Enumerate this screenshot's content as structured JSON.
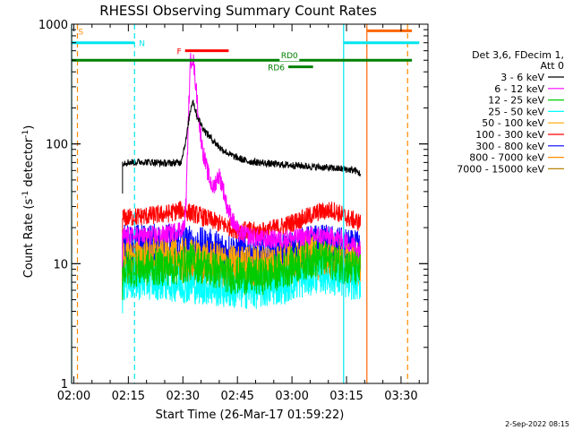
{
  "chart_data": {
    "type": "line",
    "title": "RHESSI Observing Summary Count Rates",
    "xlabel": "Start Time (26-Mar-17 01:59:22)",
    "ylabel": "Count Rate (s⁻¹ detector⁻¹)",
    "ylabel_parts": [
      "Count Rate (s",
      "-1",
      " detector",
      "-1",
      ")"
    ],
    "yscale": "log",
    "ylim": [
      1,
      1000
    ],
    "xlim_minutes": [
      0,
      98
    ],
    "x_ticks": [
      {
        "label": "02:00",
        "t": 0.6
      },
      {
        "label": "02:15",
        "t": 15.6
      },
      {
        "label": "02:30",
        "t": 30.6
      },
      {
        "label": "02:45",
        "t": 45.6
      },
      {
        "label": "03:00",
        "t": 60.6
      },
      {
        "label": "03:15",
        "t": 75.6
      },
      {
        "label": "03:30",
        "t": 90.6
      }
    ],
    "y_ticks": [
      {
        "label": "1",
        "v": 1
      },
      {
        "label": "10",
        "v": 10
      },
      {
        "label": "100",
        "v": 100
      },
      {
        "label": "1000",
        "v": 1000
      }
    ],
    "legend": {
      "header": [
        "Det 3,6, FDecim 1,",
        "Att 0"
      ],
      "placement": "right"
    },
    "series": [
      {
        "name": "3 - 6 keV",
        "color": "#000000",
        "points": [
          [
            14,
            70
          ],
          [
            20,
            71
          ],
          [
            26,
            69
          ],
          [
            30,
            70
          ],
          [
            31.5,
            110
          ],
          [
            32.5,
            180
          ],
          [
            33.3,
            235
          ],
          [
            34.5,
            170
          ],
          [
            36.5,
            130
          ],
          [
            38.5,
            110
          ],
          [
            41,
            92
          ],
          [
            44,
            80
          ],
          [
            48,
            72
          ],
          [
            55,
            68
          ],
          [
            62,
            66
          ],
          [
            68,
            64
          ],
          [
            74,
            62
          ],
          [
            78,
            60
          ],
          [
            79.5,
            56
          ]
        ]
      },
      {
        "name": "6 - 12 keV",
        "color": "#ff00ff",
        "points": [
          [
            14,
            17
          ],
          [
            20,
            17
          ],
          [
            26,
            17.5
          ],
          [
            31,
            20
          ],
          [
            31.5,
            35
          ],
          [
            32.3,
            250
          ],
          [
            32.7,
            480
          ],
          [
            33.3,
            550
          ],
          [
            34,
            350
          ],
          [
            35,
            160
          ],
          [
            36,
            90
          ],
          [
            37,
            65
          ],
          [
            38,
            50
          ],
          [
            39,
            42
          ],
          [
            39.8,
            50
          ],
          [
            40.5,
            55
          ],
          [
            41.5,
            45
          ],
          [
            42.5,
            32
          ],
          [
            44,
            24
          ],
          [
            46,
            18
          ],
          [
            52,
            16
          ],
          [
            58,
            16
          ],
          [
            62,
            16.5
          ],
          [
            66,
            17
          ],
          [
            70,
            17
          ],
          [
            74,
            16
          ],
          [
            78,
            14
          ],
          [
            79.5,
            13
          ]
        ]
      },
      {
        "name": "12 - 25 keV",
        "color": "#00cc00",
        "points": [
          [
            14,
            9
          ],
          [
            22,
            9.3
          ],
          [
            30,
            9.5
          ],
          [
            33,
            10.5
          ],
          [
            36,
            9.5
          ],
          [
            44,
            8
          ],
          [
            52,
            7.8
          ],
          [
            58,
            8.8
          ],
          [
            64,
            10.5
          ],
          [
            68,
            11
          ],
          [
            72,
            10.5
          ],
          [
            76,
            9.5
          ],
          [
            79.5,
            9
          ]
        ]
      },
      {
        "name": "25 - 50 keV",
        "color": "#00ffff",
        "points": [
          [
            14,
            7
          ],
          [
            22,
            7.2
          ],
          [
            30,
            6.8
          ],
          [
            36,
            6.5
          ],
          [
            44,
            6
          ],
          [
            52,
            6
          ],
          [
            58,
            6.6
          ],
          [
            64,
            7.5
          ],
          [
            68,
            8.2
          ],
          [
            72,
            7.8
          ],
          [
            76,
            7.2
          ],
          [
            79.5,
            7
          ]
        ]
      },
      {
        "name": "50 - 100 keV",
        "color": "#ffa500",
        "points": [
          [
            14,
            11.5
          ],
          [
            22,
            11.8
          ],
          [
            30,
            11.5
          ],
          [
            36,
            11
          ],
          [
            44,
            10
          ],
          [
            52,
            10
          ],
          [
            58,
            10.8
          ],
          [
            64,
            12
          ],
          [
            68,
            12.5
          ],
          [
            72,
            12
          ],
          [
            76,
            11
          ],
          [
            79.5,
            10.5
          ]
        ]
      },
      {
        "name": "100 - 300 keV",
        "color": "#ff0000",
        "points": [
          [
            14,
            24
          ],
          [
            20,
            25
          ],
          [
            26,
            26
          ],
          [
            30,
            28
          ],
          [
            34,
            26
          ],
          [
            40,
            22
          ],
          [
            46,
            19
          ],
          [
            52,
            18.5
          ],
          [
            58,
            20.5
          ],
          [
            64,
            24
          ],
          [
            68,
            27
          ],
          [
            72,
            28
          ],
          [
            76,
            24
          ],
          [
            79.5,
            22
          ]
        ]
      },
      {
        "name": "300 - 800 keV",
        "color": "#0000ff",
        "points": [
          [
            14,
            15
          ],
          [
            20,
            15
          ],
          [
            26,
            15.2
          ],
          [
            30,
            15
          ],
          [
            36,
            14
          ],
          [
            42,
            13
          ],
          [
            48,
            12.5
          ],
          [
            54,
            12.2
          ],
          [
            60,
            13
          ],
          [
            65,
            14.5
          ],
          [
            68,
            15
          ],
          [
            72,
            14.5
          ],
          [
            76,
            13.5
          ],
          [
            79.5,
            13
          ]
        ]
      },
      {
        "name": "800 - 7000 keV",
        "color": "#ff8c00",
        "points": [
          [
            14,
            9.5
          ],
          [
            22,
            9.8
          ],
          [
            30,
            9.5
          ],
          [
            36,
            9
          ],
          [
            44,
            8.5
          ],
          [
            52,
            8.6
          ],
          [
            58,
            9.3
          ],
          [
            64,
            10
          ],
          [
            68,
            10.5
          ],
          [
            72,
            10
          ],
          [
            76,
            9.3
          ],
          [
            79.5,
            9
          ]
        ]
      },
      {
        "name": "7000 - 15000 keV",
        "color": "#b8860b",
        "points": [
          [
            14,
            10.5
          ],
          [
            22,
            10.8
          ],
          [
            30,
            10.6
          ],
          [
            36,
            10
          ],
          [
            44,
            9.4
          ],
          [
            52,
            9.4
          ],
          [
            58,
            10.2
          ],
          [
            64,
            11
          ],
          [
            68,
            11.5
          ],
          [
            72,
            11
          ],
          [
            76,
            10.2
          ],
          [
            79.5,
            10
          ]
        ]
      }
    ],
    "state_bars": [
      {
        "label": "S",
        "color": "#ff8c00",
        "label_side": "right",
        "level": 880,
        "start": 0.6,
        "end": 0.6
      },
      {
        "label": "N",
        "color": "#00e5ee",
        "label_side": "right",
        "level": 700,
        "start": 0,
        "end": 17.3
      },
      {
        "label": "",
        "color": "#00e5ee",
        "label_side": "none",
        "level": 700,
        "start": 74.8,
        "end": 95.6
      },
      {
        "label": "",
        "color": "#ff6600",
        "label_side": "none",
        "level": 880,
        "start": 81.2,
        "end": 93.6
      },
      {
        "label": "F",
        "color": "#ff0000",
        "label_side": "left",
        "level": 600,
        "start": 31.2,
        "end": 43.2
      },
      {
        "label": "RD0",
        "color": "#008000",
        "label_side": "mid",
        "level": 500,
        "start": 0,
        "end": 93.6
      },
      {
        "label": "RD6",
        "color": "#008000",
        "label_side": "left",
        "level": 440,
        "start": 59.6,
        "end": 66.4
      }
    ],
    "vertical_markers": [
      {
        "t": 0.0,
        "color": "#00e5ee",
        "style": "solid"
      },
      {
        "t": 1.6,
        "color": "#ff8c00",
        "style": "dashed"
      },
      {
        "t": 17.3,
        "color": "#00e5ee",
        "style": "dashed"
      },
      {
        "t": 74.8,
        "color": "#00e5ee",
        "style": "solid"
      },
      {
        "t": 81.2,
        "color": "#ff6600",
        "style": "solid"
      },
      {
        "t": 92.4,
        "color": "#ff8c00",
        "style": "dashed"
      }
    ],
    "footer_timestamp": "2-Sep-2022 08:15"
  }
}
